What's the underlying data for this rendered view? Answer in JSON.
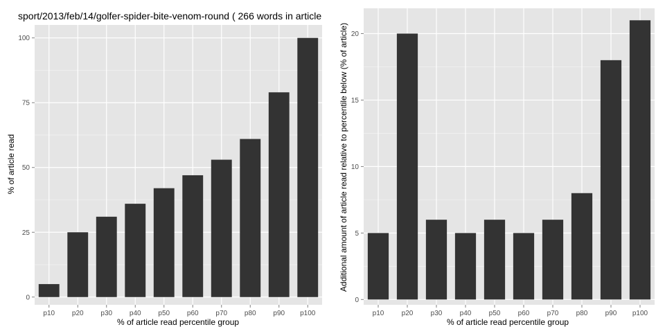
{
  "chart_data": [
    {
      "type": "bar",
      "title": "sport/2013/feb/14/golfer-spider-bite-venom-round ( 266 words in article",
      "xlabel": "% of article read percentile group",
      "ylabel": "% of article read",
      "categories": [
        "p10",
        "p20",
        "p30",
        "p40",
        "p50",
        "p60",
        "p70",
        "p80",
        "p90",
        "p100"
      ],
      "values": [
        5,
        25,
        31,
        36,
        42,
        47,
        53,
        61,
        79,
        100
      ],
      "ylim": [
        -3,
        105
      ],
      "yticks": [
        0,
        25,
        50,
        75,
        100
      ],
      "grid": true,
      "colors": {
        "panel": "#e5e5e5",
        "grid": "#ffffff",
        "bar": "#333333"
      }
    },
    {
      "type": "bar",
      "title": "",
      "xlabel": "% of article read percentile group",
      "ylabel": "Additional amount of article read relative to percentile below (% of article)",
      "categories": [
        "p10",
        "p20",
        "p30",
        "p40",
        "p50",
        "p60",
        "p70",
        "p80",
        "p90",
        "p100"
      ],
      "values": [
        5,
        20,
        6,
        5,
        6,
        5,
        6,
        8,
        18,
        21
      ],
      "ylim": [
        -0.4,
        21.9
      ],
      "yticks": [
        0,
        5,
        10,
        15,
        20
      ],
      "grid": true,
      "colors": {
        "panel": "#e5e5e5",
        "grid": "#ffffff",
        "bar": "#333333"
      }
    }
  ]
}
